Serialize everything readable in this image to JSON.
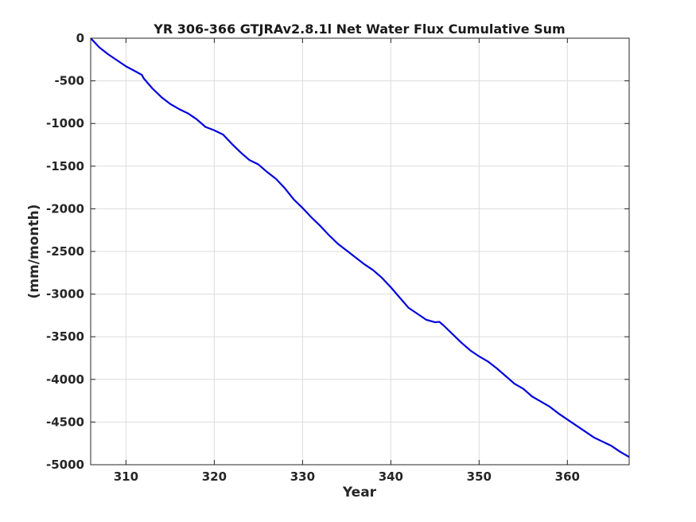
{
  "chart_data": {
    "type": "line",
    "title": "YR 306-366 GTJRAv2.8.1l Net Water Flux Cumulative Sum",
    "xlabel": "Year",
    "ylabel": "(mm/month)",
    "xlim": [
      306,
      367
    ],
    "ylim": [
      -5000,
      0
    ],
    "xticks": [
      310,
      320,
      330,
      340,
      350,
      360
    ],
    "yticks": [
      0,
      -500,
      -1000,
      -1500,
      -2000,
      -2500,
      -3000,
      -3500,
      -4000,
      -4500,
      -5000
    ],
    "grid": true,
    "line_color": "#0000dd",
    "series": [
      {
        "x": [
          306,
          307,
          308,
          309,
          310,
          311,
          311.8,
          312,
          313,
          314,
          315,
          316,
          317,
          318,
          319,
          320,
          321,
          322,
          323,
          324,
          325,
          326,
          327,
          328,
          329,
          330,
          331,
          332,
          333,
          334,
          335,
          336,
          337,
          338,
          339,
          340,
          341,
          342,
          343,
          344,
          345,
          345.5,
          346,
          347,
          348,
          349,
          350,
          351,
          352,
          353,
          354,
          355,
          356,
          357,
          358,
          359,
          360,
          361,
          362,
          363,
          364,
          365,
          366,
          367
        ],
        "values": [
          0,
          -110,
          -190,
          -260,
          -330,
          -385,
          -430,
          -470,
          -590,
          -690,
          -770,
          -830,
          -880,
          -950,
          -1040,
          -1080,
          -1130,
          -1240,
          -1340,
          -1430,
          -1480,
          -1570,
          -1650,
          -1760,
          -1890,
          -1990,
          -2100,
          -2200,
          -2310,
          -2410,
          -2490,
          -2570,
          -2650,
          -2720,
          -2810,
          -2920,
          -3040,
          -3160,
          -3230,
          -3300,
          -3330,
          -3325,
          -3370,
          -3470,
          -3570,
          -3660,
          -3730,
          -3790,
          -3870,
          -3960,
          -4050,
          -4110,
          -4200,
          -4260,
          -4320,
          -4400,
          -4470,
          -4540,
          -4610,
          -4680,
          -4730,
          -4780,
          -4850,
          -4910
        ]
      }
    ]
  }
}
